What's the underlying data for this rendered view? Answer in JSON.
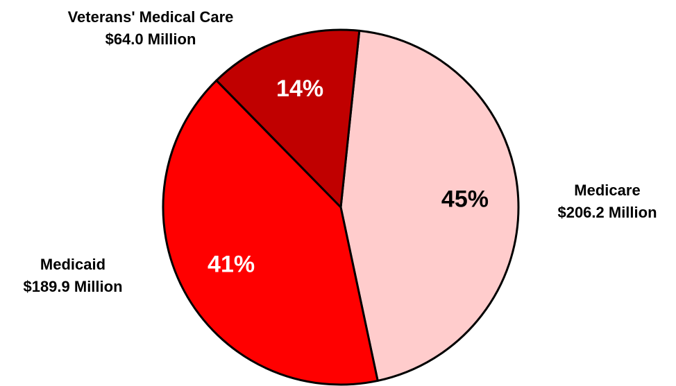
{
  "chart_data": {
    "type": "pie",
    "categories": [
      "Medicare",
      "Medicaid",
      "Veterans' Medical Care"
    ],
    "amount_labels": [
      "$206.2 Million",
      "$189.9 Million",
      "$64.0 Million"
    ],
    "values": [
      45,
      41,
      14
    ],
    "value_labels": [
      "45%",
      "41%",
      "14%"
    ],
    "colors": [
      "#ffcccc",
      "#ff0000",
      "#c00000"
    ]
  }
}
